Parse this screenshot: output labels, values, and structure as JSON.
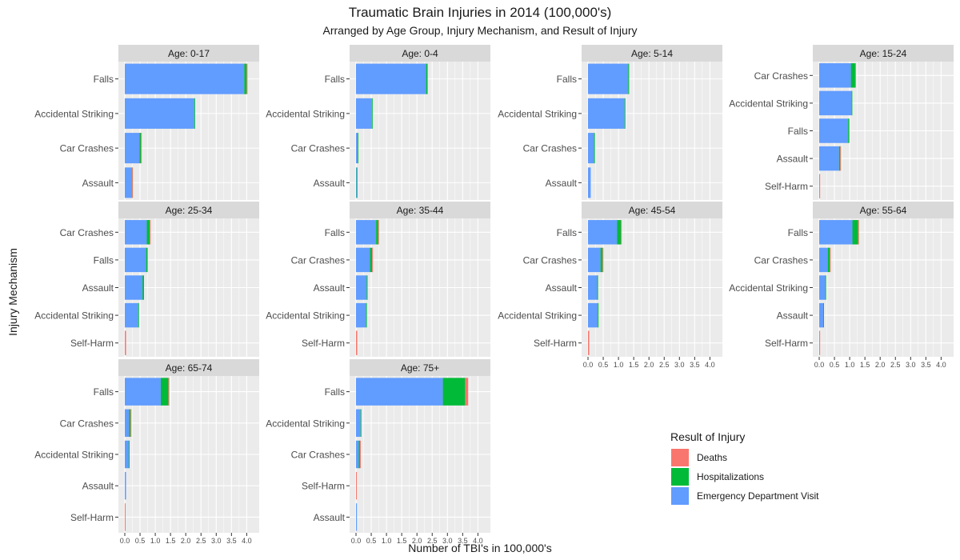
{
  "title": "Traumatic Brain Injuries in 2014 (100,000's)",
  "subtitle": "Arranged by Age Group, Injury Mechanism, and Result of Injury",
  "x_axis_label": "Number of TBI's in 100,000's",
  "y_axis_label": "Injury Mechanism",
  "legend_title": "Result of Injury",
  "colors": {
    "Deaths": "#F8766D",
    "Hospitalizations": "#00BA38",
    "Emergency Department Visit": "#619CFF",
    "panel_bg": "#EBEBEB",
    "strip_bg": "#D9D9D9",
    "grid": "#FFFFFF"
  },
  "chart_data": {
    "type": "bar",
    "orientation": "horizontal",
    "stacked": true,
    "facet_by": "Age group",
    "xlim": [
      0,
      4.2
    ],
    "x_ticks": [
      "0.0",
      "0.5",
      "1.0",
      "1.5",
      "2.0",
      "2.5",
      "3.0",
      "3.5",
      "4.0"
    ],
    "x_tick_rows": [
      "Age: 45-54",
      "Age: 55-64",
      "Age: 65-74",
      "Age: 75+"
    ],
    "grid": true,
    "legend_position": "bottom-right",
    "series": [
      "Deaths",
      "Hospitalizations",
      "Emergency Department Visit"
    ],
    "facets": [
      {
        "label": "Age: 0-17",
        "categories": [
          "Falls",
          "Accidental Striking",
          "Car Crashes",
          "Assault"
        ],
        "values": {
          "Falls": [
            0.01,
            0.08,
            3.92
          ],
          "Accidental Striking": [
            0.0,
            0.02,
            2.28
          ],
          "Car Crashes": [
            0.01,
            0.05,
            0.48
          ],
          "Assault": [
            0.01,
            0.01,
            0.23
          ]
        }
      },
      {
        "label": "Age: 0-4",
        "categories": [
          "Falls",
          "Accidental Striking",
          "Car Crashes",
          "Assault"
        ],
        "values": {
          "Falls": [
            0.0,
            0.05,
            2.3
          ],
          "Accidental Striking": [
            0.0,
            0.01,
            0.52
          ],
          "Car Crashes": [
            0.0,
            0.01,
            0.05
          ],
          "Assault": [
            0.0,
            0.01,
            0.02
          ]
        }
      },
      {
        "label": "Age: 5-14",
        "categories": [
          "Falls",
          "Accidental Striking",
          "Car Crashes",
          "Assault"
        ],
        "values": {
          "Falls": [
            0.0,
            0.03,
            1.32
          ],
          "Accidental Striking": [
            0.0,
            0.01,
            1.2
          ],
          "Car Crashes": [
            0.0,
            0.02,
            0.2
          ],
          "Assault": [
            0.0,
            0.0,
            0.09
          ]
        }
      },
      {
        "label": "Age: 15-24",
        "categories": [
          "Car Crashes",
          "Accidental Striking",
          "Falls",
          "Assault",
          "Self-Harm"
        ],
        "values": {
          "Car Crashes": [
            0.02,
            0.14,
            1.04
          ],
          "Accidental Striking": [
            0.0,
            0.01,
            1.06
          ],
          "Falls": [
            0.0,
            0.04,
            0.95
          ],
          "Assault": [
            0.01,
            0.04,
            0.65
          ],
          "Self-Harm": [
            0.03,
            0.0,
            0.0
          ]
        }
      },
      {
        "label": "Age: 25-34",
        "categories": [
          "Car Crashes",
          "Falls",
          "Assault",
          "Accidental Striking",
          "Self-Harm"
        ],
        "values": {
          "Car Crashes": [
            0.02,
            0.1,
            0.72
          ],
          "Falls": [
            0.0,
            0.05,
            0.7
          ],
          "Assault": [
            0.0,
            0.05,
            0.58
          ],
          "Accidental Striking": [
            0.0,
            0.01,
            0.44
          ],
          "Self-Harm": [
            0.04,
            0.0,
            0.0
          ]
        }
      },
      {
        "label": "Age: 35-44",
        "categories": [
          "Falls",
          "Car Crashes",
          "Assault",
          "Accidental Striking",
          "Self-Harm"
        ],
        "values": {
          "Falls": [
            0.01,
            0.07,
            0.66
          ],
          "Car Crashes": [
            0.01,
            0.07,
            0.46
          ],
          "Assault": [
            0.0,
            0.03,
            0.35
          ],
          "Accidental Striking": [
            0.0,
            0.01,
            0.33
          ],
          "Self-Harm": [
            0.04,
            0.0,
            0.0
          ]
        }
      },
      {
        "label": "Age: 45-54",
        "categories": [
          "Falls",
          "Car Crashes",
          "Assault",
          "Accidental Striking",
          "Self-Harm"
        ],
        "values": {
          "Falls": [
            0.01,
            0.13,
            0.95
          ],
          "Car Crashes": [
            0.01,
            0.07,
            0.41
          ],
          "Assault": [
            0.0,
            0.03,
            0.3
          ],
          "Accidental Striking": [
            0.0,
            0.01,
            0.32
          ],
          "Self-Harm": [
            0.04,
            0.0,
            0.0
          ]
        }
      },
      {
        "label": "Age: 55-64",
        "categories": [
          "Falls",
          "Car Crashes",
          "Accidental Striking",
          "Assault",
          "Self-Harm"
        ],
        "values": {
          "Falls": [
            0.02,
            0.19,
            1.09
          ],
          "Car Crashes": [
            0.01,
            0.07,
            0.28
          ],
          "Accidental Striking": [
            0.0,
            0.01,
            0.2
          ],
          "Assault": [
            0.0,
            0.02,
            0.13
          ],
          "Self-Harm": [
            0.03,
            0.0,
            0.0
          ]
        }
      },
      {
        "label": "Age: 65-74",
        "categories": [
          "Falls",
          "Car Crashes",
          "Accidental Striking",
          "Assault",
          "Self-Harm"
        ],
        "values": {
          "Falls": [
            0.03,
            0.25,
            1.18
          ],
          "Car Crashes": [
            0.01,
            0.05,
            0.14
          ],
          "Accidental Striking": [
            0.0,
            0.01,
            0.13
          ],
          "Assault": [
            0.0,
            0.0,
            0.04
          ],
          "Self-Harm": [
            0.02,
            0.0,
            0.0
          ]
        }
      },
      {
        "label": "Age: 75+",
        "categories": [
          "Falls",
          "Accidental Striking",
          "Car Crashes",
          "Self-Harm",
          "Assault"
        ],
        "values": {
          "Falls": [
            0.1,
            0.73,
            2.85
          ],
          "Accidental Striking": [
            0.0,
            0.01,
            0.15
          ],
          "Car Crashes": [
            0.01,
            0.04,
            0.09
          ],
          "Self-Harm": [
            0.02,
            0.0,
            0.0
          ],
          "Assault": [
            0.0,
            0.0,
            0.03
          ]
        }
      }
    ]
  }
}
